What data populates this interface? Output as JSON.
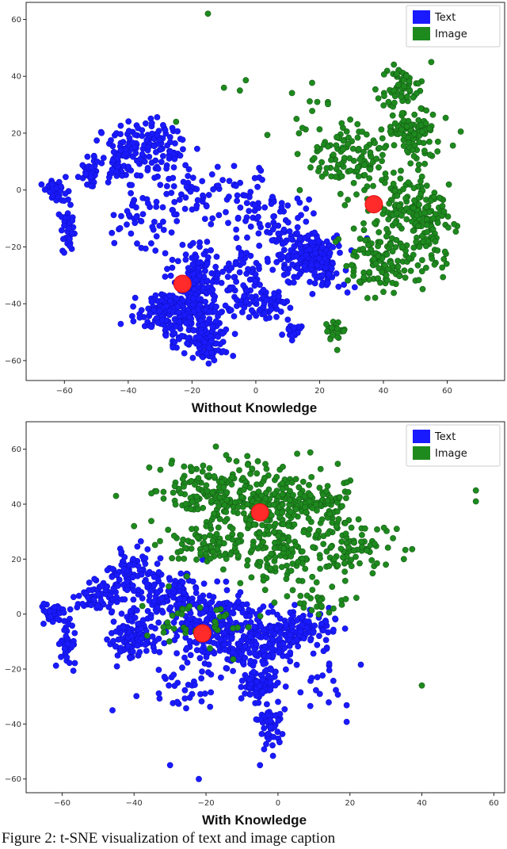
{
  "chart_data": [
    {
      "type": "scatter",
      "title": "Without Knowledge",
      "xlim": [
        -72,
        78
      ],
      "ylim": [
        -67,
        66
      ],
      "xticks": [
        -60,
        -40,
        -20,
        0,
        20,
        40,
        60
      ],
      "yticks": [
        -60,
        -40,
        -20,
        0,
        20,
        40,
        60
      ],
      "grid": false,
      "legend": "top-right",
      "series": [
        {
          "name": "Text",
          "color": "#1a1aff",
          "clusters": [
            {
              "cx": -63,
              "cy": 0,
              "rx": 3,
              "ry": 3,
              "n": 40
            },
            {
              "cx": -59,
              "cy": -12,
              "rx": 2,
              "ry": 10,
              "n": 40
            },
            {
              "cx": -52,
              "cy": 7,
              "rx": 3,
              "ry": 4,
              "n": 40
            },
            {
              "cx": -42,
              "cy": 12,
              "rx": 6,
              "ry": 10,
              "n": 80
            },
            {
              "cx": -32,
              "cy": 16,
              "rx": 9,
              "ry": 9,
              "n": 90
            },
            {
              "cx": -35,
              "cy": -10,
              "rx": 10,
              "ry": 14,
              "n": 50
            },
            {
              "cx": -20,
              "cy": 0,
              "rx": 12,
              "ry": 12,
              "n": 60
            },
            {
              "cx": -28,
              "cy": -42,
              "rx": 8,
              "ry": 5,
              "n": 120
            },
            {
              "cx": -20,
              "cy": -45,
              "rx": 10,
              "ry": 10,
              "n": 200
            },
            {
              "cx": -18,
              "cy": -28,
              "rx": 6,
              "ry": 8,
              "n": 80
            },
            {
              "cx": -15,
              "cy": -55,
              "rx": 5,
              "ry": 5,
              "n": 60
            },
            {
              "cx": -5,
              "cy": -30,
              "rx": 10,
              "ry": 12,
              "n": 70
            },
            {
              "cx": 3,
              "cy": -40,
              "rx": 6,
              "ry": 5,
              "n": 60
            },
            {
              "cx": 12,
              "cy": -50,
              "rx": 3,
              "ry": 2,
              "n": 25
            },
            {
              "cx": 0,
              "cy": -5,
              "rx": 12,
              "ry": 10,
              "n": 60
            },
            {
              "cx": 18,
              "cy": -25,
              "rx": 9,
              "ry": 9,
              "n": 200
            },
            {
              "cx": 10,
              "cy": -15,
              "rx": 8,
              "ry": 8,
              "n": 40
            }
          ]
        },
        {
          "name": "Image",
          "color": "#1e8a1e",
          "clusters": [
            {
              "cx": 30,
              "cy": 12,
              "rx": 12,
              "ry": 12,
              "n": 120
            },
            {
              "cx": 45,
              "cy": 35,
              "rx": 6,
              "ry": 7,
              "n": 60
            },
            {
              "cx": 50,
              "cy": 20,
              "rx": 8,
              "ry": 8,
              "n": 90
            },
            {
              "cx": 48,
              "cy": -5,
              "rx": 10,
              "ry": 10,
              "n": 120
            },
            {
              "cx": 40,
              "cy": -25,
              "rx": 10,
              "ry": 10,
              "n": 130
            },
            {
              "cx": 55,
              "cy": -15,
              "rx": 6,
              "ry": 10,
              "n": 60
            },
            {
              "cx": 25,
              "cy": -50,
              "rx": 3,
              "ry": 4,
              "n": 25
            },
            {
              "cx": 15,
              "cy": 30,
              "rx": 12,
              "ry": 18,
              "n": 12
            }
          ],
          "outliers": [
            [
              -15,
              62
            ],
            [
              -10,
              36
            ],
            [
              -25,
              24
            ],
            [
              -5,
              35
            ],
            [
              55,
              45
            ],
            [
              35,
              -38
            ]
          ]
        }
      ],
      "centroids": [
        {
          "series": "Text",
          "x": -23,
          "y": -33
        },
        {
          "series": "Image",
          "x": 37,
          "y": -5
        }
      ]
    },
    {
      "type": "scatter",
      "title": "With Knowledge",
      "xlim": [
        -70,
        63
      ],
      "ylim": [
        -65,
        70
      ],
      "xticks": [
        -60,
        -40,
        -20,
        0,
        20,
        40,
        60
      ],
      "yticks": [
        -60,
        -40,
        -20,
        0,
        20,
        40,
        60
      ],
      "grid": false,
      "legend": "top-right",
      "series": [
        {
          "name": "Text",
          "color": "#1a1aff",
          "clusters": [
            {
              "cx": -63,
              "cy": 0,
              "rx": 3,
              "ry": 3,
              "n": 40
            },
            {
              "cx": -59,
              "cy": -12,
              "rx": 2,
              "ry": 10,
              "n": 40
            },
            {
              "cx": -50,
              "cy": 6,
              "rx": 5,
              "ry": 5,
              "n": 60
            },
            {
              "cx": -42,
              "cy": 15,
              "rx": 6,
              "ry": 8,
              "n": 80
            },
            {
              "cx": -40,
              "cy": -8,
              "rx": 6,
              "ry": 8,
              "n": 120
            },
            {
              "cx": -30,
              "cy": 5,
              "rx": 10,
              "ry": 12,
              "n": 150
            },
            {
              "cx": -18,
              "cy": -5,
              "rx": 10,
              "ry": 10,
              "n": 200
            },
            {
              "cx": -5,
              "cy": -10,
              "rx": 10,
              "ry": 10,
              "n": 160
            },
            {
              "cx": 5,
              "cy": -5,
              "rx": 10,
              "ry": 6,
              "n": 100
            },
            {
              "cx": -5,
              "cy": -25,
              "rx": 5,
              "ry": 5,
              "n": 80
            },
            {
              "cx": -2,
              "cy": -40,
              "rx": 3,
              "ry": 8,
              "n": 50
            },
            {
              "cx": -25,
              "cy": -25,
              "rx": 15,
              "ry": 10,
              "n": 40
            },
            {
              "cx": 15,
              "cy": -25,
              "rx": 8,
              "ry": 10,
              "n": 20
            }
          ],
          "outliers": [
            [
              -22,
              -60
            ],
            [
              -30,
              -55
            ],
            [
              -5,
              -55
            ],
            [
              -46,
              -35
            ]
          ]
        },
        {
          "name": "Image",
          "color": "#1e8a1e",
          "clusters": [
            {
              "cx": -20,
              "cy": 45,
              "rx": 12,
              "ry": 10,
              "n": 120
            },
            {
              "cx": -5,
              "cy": 40,
              "rx": 12,
              "ry": 15,
              "n": 200
            },
            {
              "cx": 10,
              "cy": 40,
              "rx": 10,
              "ry": 10,
              "n": 120
            },
            {
              "cx": 20,
              "cy": 25,
              "rx": 10,
              "ry": 8,
              "n": 80
            },
            {
              "cx": -20,
              "cy": 25,
              "rx": 10,
              "ry": 6,
              "n": 80
            },
            {
              "cx": 0,
              "cy": 20,
              "rx": 10,
              "ry": 8,
              "n": 80
            },
            {
              "cx": 10,
              "cy": 5,
              "rx": 10,
              "ry": 6,
              "n": 30
            },
            {
              "cx": -20,
              "cy": -3,
              "rx": 15,
              "ry": 10,
              "n": 40
            }
          ],
          "outliers": [
            [
              55,
              45
            ],
            [
              55,
              41
            ],
            [
              40,
              -26
            ],
            [
              -45,
              43
            ],
            [
              -40,
              32
            ],
            [
              33,
              31
            ],
            [
              30,
              18
            ],
            [
              35,
              20
            ]
          ]
        }
      ],
      "centroids": [
        {
          "series": "Image",
          "x": -5,
          "y": 37
        },
        {
          "series": "Text",
          "x": -21,
          "y": -7
        }
      ]
    }
  ],
  "caption": "Figure 2: t-SNE visualization of text and image caption"
}
